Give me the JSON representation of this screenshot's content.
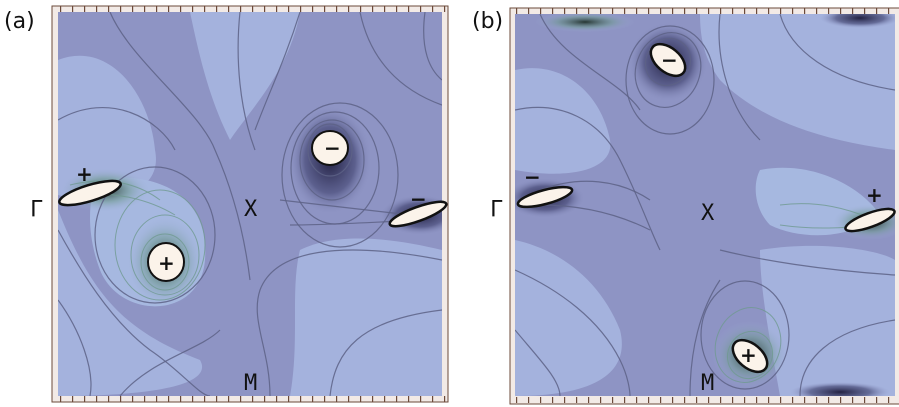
{
  "figure": {
    "panels": [
      {
        "label": "(a)",
        "points": {
          "gamma": "Γ",
          "x": "X",
          "m": "M"
        },
        "singularities": [
          {
            "sign": "+",
            "kind": "ellipse-left"
          },
          {
            "sign": "+",
            "kind": "circle"
          },
          {
            "sign": "−",
            "kind": "circle"
          },
          {
            "sign": "−",
            "kind": "ellipse-right"
          }
        ]
      },
      {
        "label": "(b)",
        "points": {
          "gamma": "Γ",
          "x": "X",
          "m": "M"
        },
        "singularities": [
          {
            "sign": "−",
            "kind": "ellipse-left"
          },
          {
            "sign": "−",
            "kind": "ellipse-top"
          },
          {
            "sign": "+",
            "kind": "ellipse-right"
          },
          {
            "sign": "+",
            "kind": "ellipse-bottom"
          }
        ]
      }
    ],
    "colors": {
      "background": "#8e94c4",
      "light_fill": "#a4b2dd",
      "dark_fill": "#5d6286",
      "frame": "#6b4a3a"
    }
  }
}
